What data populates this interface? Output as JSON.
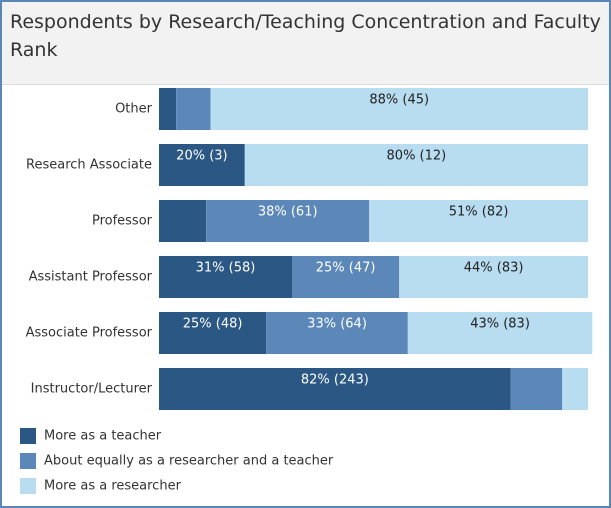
{
  "chart_data": {
    "type": "bar",
    "orientation": "horizontal",
    "stacked": true,
    "title": "Respondents by  Research/Teaching Concentration and Faculty Rank",
    "categories": [
      "Other",
      "Research Associate",
      "Professor",
      "Assistant Professor",
      "Associate Professor",
      "Instructor/Lecturer"
    ],
    "xlim": [
      0,
      100
    ],
    "series": [
      {
        "name": "More as a teacher",
        "color": "#2a5783",
        "values": [
          4,
          20,
          11,
          31,
          25,
          82
        ],
        "value_labels": [
          null,
          "20% (3)",
          null,
          "31% (58)",
          "25% (48)",
          "82% (243)"
        ]
      },
      {
        "name": "About equally as a researcher and a teacher",
        "color": "#5b88b9",
        "values": [
          8,
          0,
          38,
          25,
          33,
          12
        ],
        "value_labels": [
          null,
          null,
          "38% (61)",
          "25% (47)",
          "33% (64)",
          null
        ]
      },
      {
        "name": "More as a researcher",
        "color": "#b8dcf0",
        "values": [
          88,
          80,
          51,
          44,
          43,
          6
        ],
        "value_labels": [
          "88% (45)",
          "80% (12)",
          "51% (82)",
          "44% (83)",
          "43% (83)",
          null
        ]
      }
    ]
  }
}
